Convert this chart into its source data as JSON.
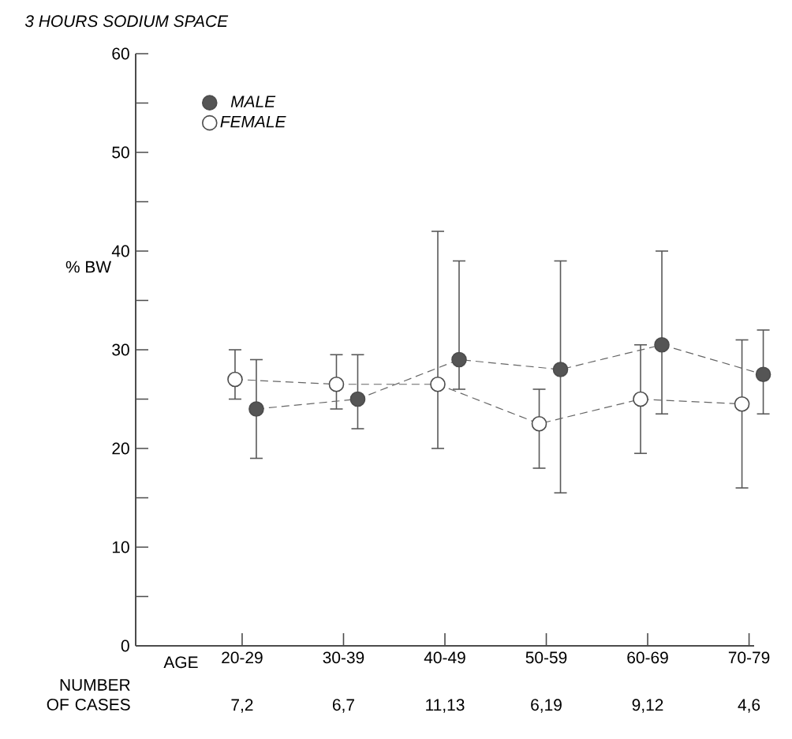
{
  "chart_data": {
    "type": "line",
    "title": "3 HOURS SODIUM SPACE",
    "xlabel": "AGE",
    "ylabel": "% BW",
    "categories": [
      "20-29",
      "30-39",
      "40-49",
      "50-59",
      "60-69",
      "70-79"
    ],
    "series": [
      {
        "name": "MALE",
        "color": "#555555",
        "values": [
          24,
          25,
          29,
          28,
          30.5,
          27.5
        ],
        "errors": [
          [
            19,
            29
          ],
          [
            22,
            29.5
          ],
          [
            26,
            39
          ],
          [
            15.5,
            39
          ],
          [
            23.5,
            40
          ],
          [
            23.5,
            32
          ]
        ]
      },
      {
        "name": "FEMALE",
        "color": "#ffffff",
        "values": [
          27,
          26.5,
          26.5,
          22.5,
          25,
          24.5
        ],
        "errors": [
          [
            25,
            30
          ],
          [
            24,
            29.5
          ],
          [
            20,
            42
          ],
          [
            18,
            26
          ],
          [
            19.5,
            30.5
          ],
          [
            16,
            31
          ]
        ]
      }
    ],
    "ylim": [
      0,
      60
    ],
    "yticks": [
      0,
      {
        "value": 5,
        "label": null
      },
      10,
      {
        "value": 15,
        "label": null
      },
      20,
      {
        "value": 25,
        "label": null
      },
      30,
      {
        "value": 35,
        "label": null
      },
      40,
      {
        "value": 45,
        "label": null
      },
      50,
      {
        "value": 55,
        "label": null
      },
      60
    ],
    "annotations": [
      "NUMBER OF CASES",
      "7,2",
      "6,7",
      "11,13",
      "6,19",
      "9,12",
      "4,6"
    ],
    "legend": "top left",
    "marker": "circle",
    "line_style": "dashed",
    "grid": false
  }
}
